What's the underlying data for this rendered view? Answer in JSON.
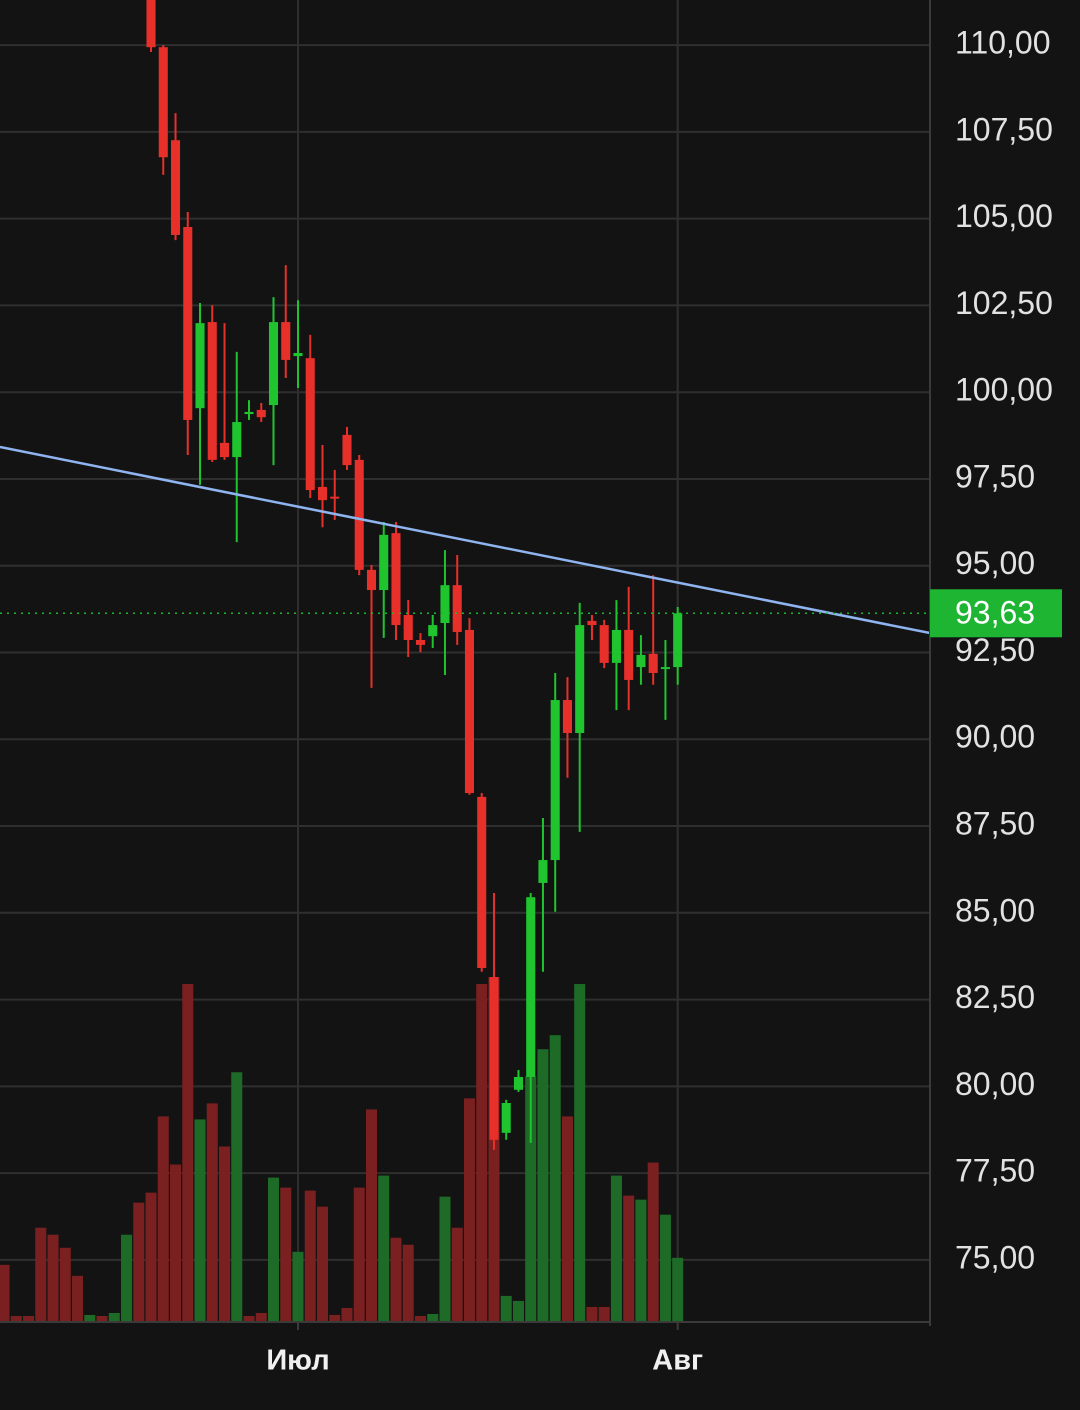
{
  "chart_data": {
    "type": "candlestick",
    "categories": [
      null,
      null,
      null,
      null,
      null,
      null,
      null,
      null,
      null,
      null,
      null,
      null,
      null,
      null,
      null,
      null,
      null,
      null,
      null,
      null,
      null,
      null,
      null,
      null,
      "Июл",
      null,
      null,
      null,
      null,
      null,
      null,
      null,
      null,
      null,
      null,
      null,
      null,
      null,
      null,
      null,
      null,
      null,
      null,
      null,
      null,
      null,
      null,
      null,
      null,
      null,
      null,
      null,
      null,
      null,
      null,
      "Авг"
    ],
    "open": [
      null,
      null,
      null,
      null,
      null,
      null,
      null,
      null,
      null,
      null,
      null,
      null,
      111.6,
      109.94,
      107.26,
      104.76,
      99.54,
      102.02,
      98.54,
      98.13,
      99.37,
      99.49,
      99.63,
      102.02,
      101.04,
      100.98,
      97.27,
      96.99,
      98.77,
      98.05,
      94.88,
      94.3,
      95.94,
      93.58,
      92.86,
      92.97,
      93.35,
      94.44,
      93.15,
      88.34,
      83.15,
      78.66,
      79.9,
      80.27,
      85.86,
      86.52,
      91.13,
      90.18,
      93.41,
      93.29,
      92.2,
      93.15,
      92.08,
      92.46,
      92.05,
      92.08
    ],
    "high": [
      null,
      null,
      null,
      null,
      null,
      null,
      null,
      null,
      null,
      null,
      null,
      null,
      112.0,
      110.0,
      108.04,
      105.19,
      102.57,
      102.51,
      101.99,
      101.16,
      99.77,
      99.69,
      102.74,
      103.66,
      102.65,
      101.65,
      98.48,
      97.76,
      99.0,
      98.19,
      95.02,
      96.26,
      96.26,
      94.01,
      93.06,
      93.58,
      95.45,
      95.31,
      93.49,
      88.45,
      85.57,
      79.61,
      80.47,
      85.57,
      87.73,
      91.91,
      91.79,
      93.93,
      93.58,
      93.44,
      94.01,
      94.39,
      93.0,
      94.73,
      92.86,
      93.81
    ],
    "low": [
      null,
      null,
      null,
      null,
      null,
      null,
      null,
      null,
      null,
      null,
      null,
      null,
      109.8,
      106.26,
      104.38,
      98.19,
      97.33,
      97.99,
      98.05,
      95.68,
      99.2,
      99.14,
      97.9,
      100.41,
      100.12,
      96.95,
      96.11,
      96.32,
      97.76,
      94.73,
      91.48,
      92.92,
      92.86,
      92.37,
      92.51,
      92.63,
      91.85,
      92.72,
      88.4,
      83.3,
      78.17,
      78.46,
      79.84,
      78.37,
      83.3,
      85.03,
      88.89,
      87.33,
      92.86,
      92.05,
      90.84,
      90.84,
      91.57,
      91.57,
      90.56,
      91.57
    ],
    "close": [
      null,
      null,
      null,
      null,
      null,
      null,
      null,
      null,
      null,
      null,
      null,
      null,
      109.94,
      106.77,
      104.53,
      99.2,
      101.99,
      98.05,
      98.13,
      99.14,
      99.43,
      99.28,
      102.02,
      100.93,
      101.13,
      97.18,
      96.89,
      96.95,
      97.9,
      94.88,
      94.3,
      95.89,
      93.29,
      92.86,
      92.72,
      93.29,
      94.44,
      93.09,
      88.45,
      83.41,
      78.46,
      79.52,
      80.27,
      85.45,
      86.52,
      91.13,
      90.18,
      93.29,
      93.29,
      92.2,
      93.15,
      91.71,
      92.43,
      91.91,
      92.08,
      93.63
    ],
    "volume": [
      57,
      6,
      6,
      94,
      87,
      74,
      46,
      7,
      6,
      9,
      87,
      119,
      129,
      205,
      157,
      337,
      202,
      218,
      175,
      249,
      6,
      9,
      144,
      134,
      70,
      131,
      115,
      7,
      14,
      134,
      212,
      146,
      84,
      77,
      6,
      8,
      125,
      94,
      223,
      337,
      344,
      26,
      21,
      245,
      272,
      286,
      205,
      337,
      15,
      15,
      146,
      126,
      122,
      159,
      107,
      64
    ],
    "volume_colors": [
      "#7a2020",
      "#7a2020",
      "#7a2020",
      "#7a2020",
      "#7a2020",
      "#7a2020",
      "#7a2020",
      "#1d6b27",
      "#7a2020",
      "#1d6b27",
      "#1d6b27",
      "#7a2020",
      "#7a2020",
      "#7a2020",
      "#7a2020",
      "#7a2020",
      "#1d6b27",
      "#7a2020",
      "#7a2020",
      "#1d6b27",
      "#7a2020",
      "#7a2020",
      "#1d6b27",
      "#7a2020",
      "#1d6b27",
      "#7a2020",
      "#7a2020",
      "#7a2020",
      "#7a2020",
      "#7a2020",
      "#7a2020",
      "#1d6b27",
      "#7a2020",
      "#7a2020",
      "#7a2020",
      "#1d6b27",
      "#1d6b27",
      "#7a2020",
      "#7a2020",
      "#7a2020",
      "#7a2020",
      "#1d6b27",
      "#1d6b27",
      "#1d6b27",
      "#1d6b27",
      "#1d6b27",
      "#7a2020",
      "#1d6b27",
      "#7a2020",
      "#7a2020",
      "#1d6b27",
      "#7a2020",
      "#1d6b27",
      "#7a2020",
      "#1d6b27",
      "#1d6b27"
    ],
    "up_color": "#1fc42f",
    "down_color": "#e8302b",
    "xlim": [
      -0.33,
      75.6
    ],
    "ylim": [
      73.21,
      111.3
    ],
    "yticks": [
      {
        "value": 75,
        "label": "75,00"
      },
      {
        "value": 77.5,
        "label": "77,50"
      },
      {
        "value": 80,
        "label": "80,00"
      },
      {
        "value": 82.5,
        "label": "82,50"
      },
      {
        "value": 85,
        "label": "85,00"
      },
      {
        "value": 87.5,
        "label": "87,50"
      },
      {
        "value": 90,
        "label": "90,00"
      },
      {
        "value": 92.5,
        "label": "92,50"
      },
      {
        "value": 95,
        "label": "95,00"
      },
      {
        "value": 97.5,
        "label": "97,50"
      },
      {
        "value": 100,
        "label": "100,00"
      },
      {
        "value": 102.5,
        "label": "102,50"
      },
      {
        "value": 105,
        "label": "105,00"
      },
      {
        "value": 107.5,
        "label": "107,50"
      },
      {
        "value": 110,
        "label": "110,00"
      }
    ],
    "grid": true,
    "last_price": {
      "value": 93.63,
      "label": "93,63",
      "color": "#1db531"
    },
    "trendline": {
      "values": [
        98.42,
        93.06
      ],
      "color": "#8fb4f0"
    }
  }
}
